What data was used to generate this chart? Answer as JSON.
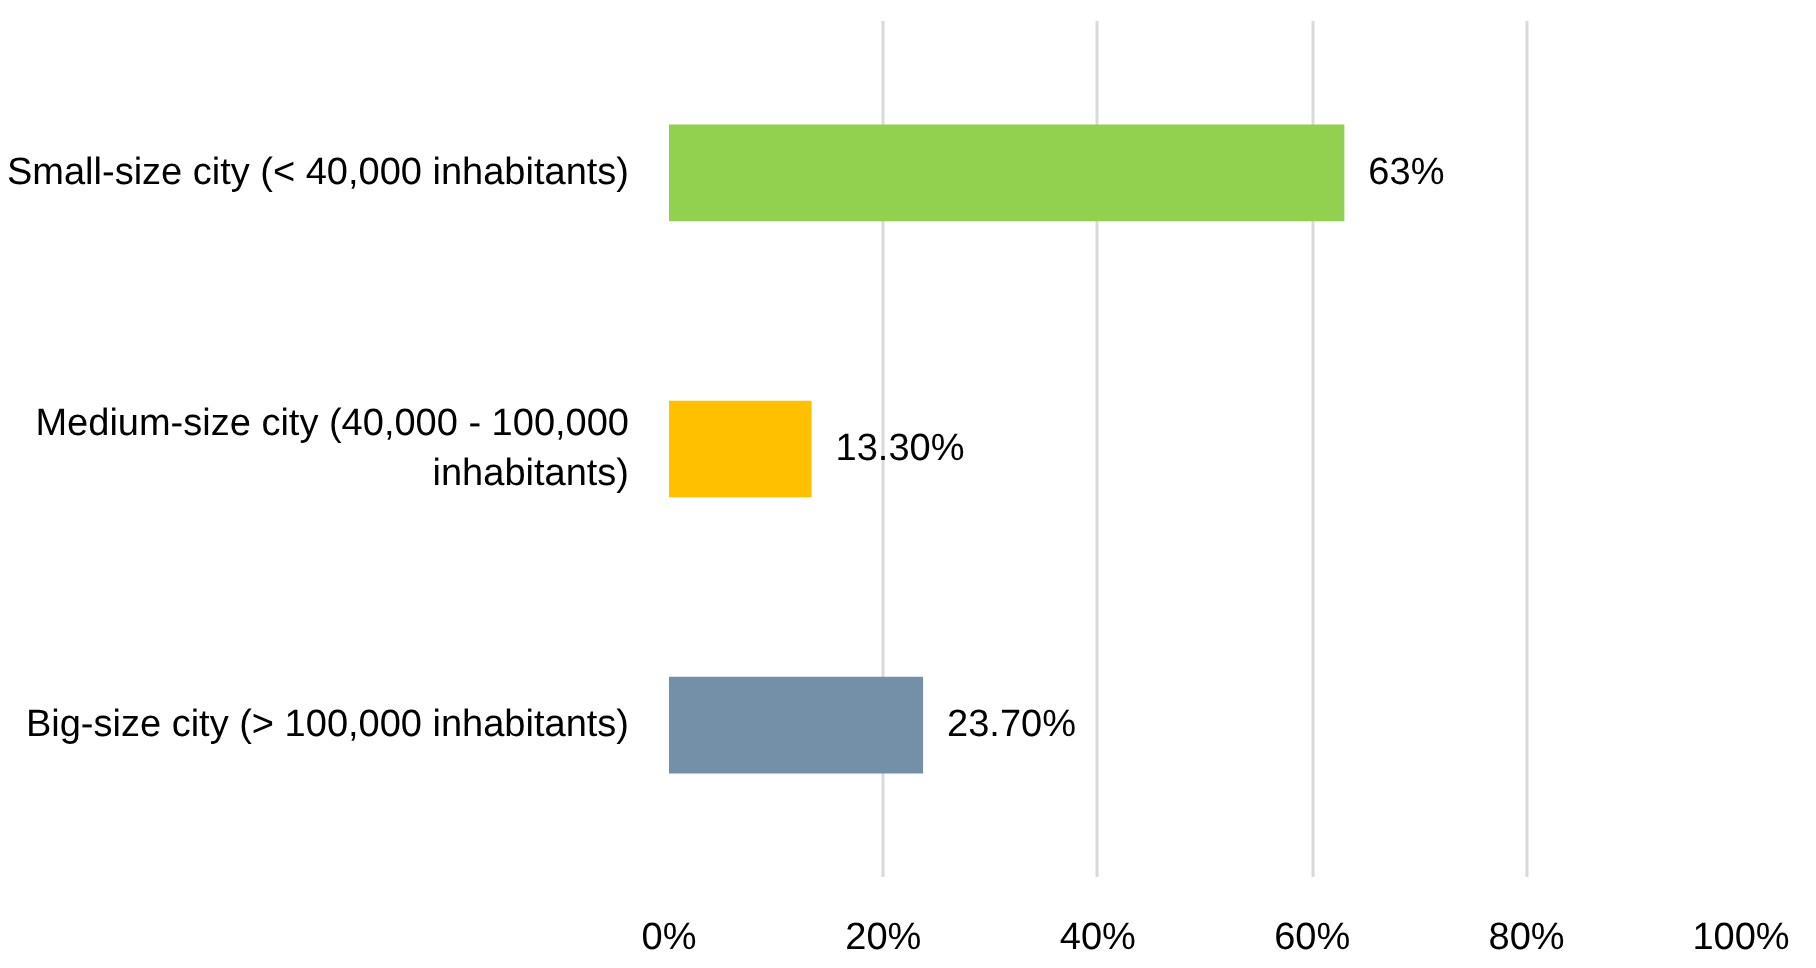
{
  "chart_data": {
    "type": "bar",
    "orientation": "horizontal",
    "categories": [
      "Small-size city (< 40,000 inhabitants)",
      "Medium-size city (40,000 - 100,000 inhabitants)",
      "Big-size city (> 100,000 inhabitants)"
    ],
    "values": [
      63,
      13.3,
      23.7
    ],
    "colors": [
      "#92d050",
      "#ffc000",
      "#7490a8"
    ],
    "value_labels": [
      "63%",
      "13.30%",
      "23.70%"
    ],
    "xlim": [
      0,
      100
    ],
    "xticks": [
      {
        "value": 0,
        "label": "0%"
      },
      {
        "value": 20,
        "label": "20%"
      },
      {
        "value": 40,
        "label": "40%"
      },
      {
        "value": 60,
        "label": "60%"
      },
      {
        "value": 80,
        "label": "80%"
      },
      {
        "value": 100,
        "label": "100%"
      }
    ],
    "grid": "x"
  }
}
